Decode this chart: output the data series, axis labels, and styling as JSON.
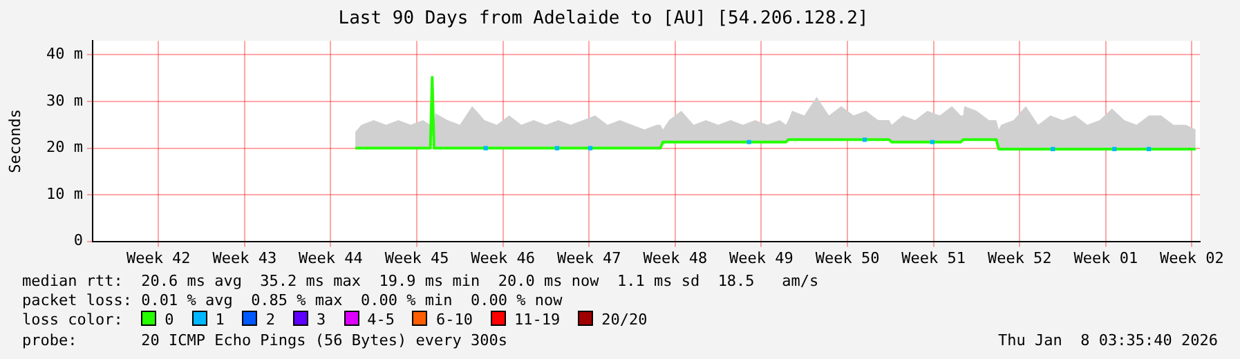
{
  "chart_data": {
    "type": "line",
    "title": "Last 90 Days from Adelaide to [AU] [54.206.128.2]",
    "ylabel": "Seconds",
    "xlim": [
      "2025-10-10T03:35",
      "2026-01-08T03:35"
    ],
    "xticks": [
      {
        "value": "2025-10-15T12:00",
        "label": "Week 42"
      },
      {
        "value": "2025-10-22T12:00",
        "label": "Week 43"
      },
      {
        "value": "2025-10-29T12:00",
        "label": "Week 44"
      },
      {
        "value": "2025-11-05T12:00",
        "label": "Week 45"
      },
      {
        "value": "2025-11-12T12:00",
        "label": "Week 46"
      },
      {
        "value": "2025-11-19T12:00",
        "label": "Week 47"
      },
      {
        "value": "2025-11-26T12:00",
        "label": "Week 48"
      },
      {
        "value": "2025-12-03T12:00",
        "label": "Week 49"
      },
      {
        "value": "2025-12-10T12:00",
        "label": "Week 50"
      },
      {
        "value": "2025-12-17T12:00",
        "label": "Week 51"
      },
      {
        "value": "2025-12-24T12:00",
        "label": "Week 52"
      },
      {
        "value": "2025-12-31T12:00",
        "label": "Week 01"
      },
      {
        "value": "2026-01-07T12:00",
        "label": "Week 02"
      }
    ],
    "ylim": [
      0,
      43
    ],
    "yticks": [
      0,
      {
        "value": 10,
        "label": "10 m"
      },
      {
        "value": 20,
        "label": "20 m"
      },
      {
        "value": 30,
        "label": "30 m"
      },
      {
        "value": 40,
        "label": "40 m"
      }
    ],
    "grid": true,
    "legend": "bottom",
    "legend_title": "loss color:",
    "annotations": [
      "median rtt:  20.6 ms avg  35.2 ms max  19.9 ms min  20.0 ms now  1.1 ms sd  18.5   am/s",
      "packet loss: 0.01 % avg  0.85 % max  0.00 % min  0.00 % now",
      "probe:       20 ICMP Echo Pings (56 Bytes) every 300s",
      "Thu Jan  8 03:35:40 2026"
    ],
    "series": [
      {
        "name": "0",
        "color": "#26ff00",
        "x": [
          "2025-10-31T12:00",
          "2025-11-01",
          "2025-11-02",
          "2025-11-03",
          "2025-11-04",
          "2025-11-05",
          "2025-11-06",
          "2025-11-06T14:24",
          "2025-11-06T18:00",
          "2025-11-06T21:36",
          "2025-11-07",
          "2025-11-08",
          "2025-11-09",
          "2025-11-10",
          "2025-11-11",
          "2025-11-12",
          "2025-11-13",
          "2025-11-14",
          "2025-11-15",
          "2025-11-16",
          "2025-11-17",
          "2025-11-18",
          "2025-11-19",
          "2025-11-20",
          "2025-11-21",
          "2025-11-22",
          "2025-11-23",
          "2025-11-24",
          "2025-11-25",
          "2025-11-25T07:12",
          "2025-11-25T12:00",
          "2025-11-26",
          "2025-11-27",
          "2025-11-28",
          "2025-11-29",
          "2025-11-30",
          "2025-12-01",
          "2025-12-02",
          "2025-12-03",
          "2025-12-04",
          "2025-12-05",
          "2025-12-05T12:00",
          "2025-12-05T16:48",
          "2025-12-06",
          "2025-12-07",
          "2025-12-08",
          "2025-12-09",
          "2025-12-10",
          "2025-12-11",
          "2025-12-12",
          "2025-12-13",
          "2025-12-13T21:36",
          "2025-12-14T02:24",
          "2025-12-15",
          "2025-12-16",
          "2025-12-17",
          "2025-12-18",
          "2025-12-19",
          "2025-12-19T16:48",
          "2025-12-19T21:36",
          "2025-12-20",
          "2025-12-21",
          "2025-12-22",
          "2025-12-22T14:24",
          "2025-12-22T19:12",
          "2025-12-23",
          "2025-12-24",
          "2025-12-25",
          "2025-12-26",
          "2025-12-27",
          "2025-12-28",
          "2025-12-29",
          "2025-12-30",
          "2025-12-31",
          "2026-01-01",
          "2026-01-02",
          "2026-01-03",
          "2026-01-04",
          "2026-01-05",
          "2026-01-06",
          "2026-01-07",
          "2026-01-07T19:12"
        ],
        "values": [
          20,
          20,
          20,
          20,
          20,
          20,
          20,
          20,
          35.2,
          20,
          20,
          20,
          20,
          20,
          20,
          20,
          20,
          20,
          20,
          20,
          20,
          20,
          20,
          20,
          20,
          20,
          20,
          20,
          20,
          20,
          21.3,
          21.3,
          21.3,
          21.3,
          21.3,
          21.3,
          21.3,
          21.3,
          21.3,
          21.3,
          21.3,
          21.3,
          21.8,
          21.8,
          21.8,
          21.8,
          21.8,
          21.8,
          21.8,
          21.8,
          21.8,
          21.8,
          21.3,
          21.3,
          21.3,
          21.3,
          21.3,
          21.3,
          21.3,
          21.8,
          21.8,
          21.8,
          21.8,
          21.8,
          19.8,
          19.8,
          19.8,
          19.8,
          19.8,
          19.8,
          19.8,
          19.8,
          19.8,
          19.8,
          19.8,
          19.8,
          19.8,
          19.8,
          19.8,
          19.8,
          19.8,
          19.8
        ],
        "lower": [
          20,
          20,
          20,
          20,
          20,
          20,
          20,
          20,
          35.2,
          20,
          20,
          20,
          20,
          20,
          20,
          20,
          20,
          20,
          20,
          20,
          20,
          20,
          20,
          20,
          20,
          20,
          20,
          20,
          20,
          20,
          21.3,
          21.3,
          21.3,
          21.3,
          21.3,
          21.3,
          21.3,
          21.3,
          21.3,
          21.3,
          21.3,
          21.3,
          21.8,
          21.8,
          21.8,
          21.8,
          21.8,
          21.8,
          21.8,
          21.8,
          21.8,
          21.8,
          21.3,
          21.3,
          21.3,
          21.3,
          21.3,
          21.3,
          21.3,
          21.8,
          21.8,
          21.8,
          21.8,
          21.8,
          19.8,
          19.8,
          19.8,
          19.8,
          19.8,
          19.8,
          19.8,
          19.8,
          19.8,
          19.8,
          19.8,
          19.8,
          19.8,
          19.8,
          19.8,
          19.8,
          19.8,
          19.8
        ],
        "upper": [
          23.5,
          25,
          26,
          25,
          26,
          25,
          26,
          25,
          35.2,
          25,
          27.5,
          26,
          25,
          29,
          26,
          25,
          27,
          25,
          26,
          25,
          26,
          25,
          26,
          27,
          25,
          26,
          25,
          24,
          25,
          25,
          24,
          26,
          28,
          25,
          26,
          25,
          26,
          25,
          26,
          25,
          26,
          25,
          26,
          28,
          27,
          31,
          27,
          29,
          27,
          28,
          26,
          26,
          25,
          27,
          26,
          28,
          27,
          29,
          27,
          27,
          29,
          28,
          26,
          26,
          24,
          25,
          26,
          29,
          25,
          27,
          26,
          27,
          25,
          26,
          28.5,
          26,
          25,
          27,
          27,
          25,
          25,
          24
        ]
      },
      {
        "name": "1",
        "color": "#00b8ff",
        "type": "scatter",
        "x": [
          "2025-11-11T02:24",
          "2025-11-16T21:36",
          "2025-11-19T14:24",
          "2025-12-02T12:00",
          "2025-12-11T21:36",
          "2025-12-17T09:36",
          "2025-12-27T04:48",
          "2026-01-01T04:48",
          "2026-01-04"
        ],
        "values": [
          20,
          20,
          20,
          21.3,
          21.8,
          21.3,
          19.8,
          19.8,
          19.8
        ]
      },
      {
        "name": "2",
        "color": "#0059ff",
        "type": "scatter"
      },
      {
        "name": "3",
        "color": "#5e00ff",
        "type": "scatter"
      },
      {
        "name": "4-5",
        "color": "#dd00ff",
        "type": "scatter"
      },
      {
        "name": "6-10",
        "color": "#ff5e00",
        "type": "scatter"
      },
      {
        "name": "11-19",
        "color": "#ff0000",
        "type": "scatter"
      },
      {
        "name": "20/20",
        "color": "#a10000",
        "type": "scatter"
      }
    ]
  }
}
